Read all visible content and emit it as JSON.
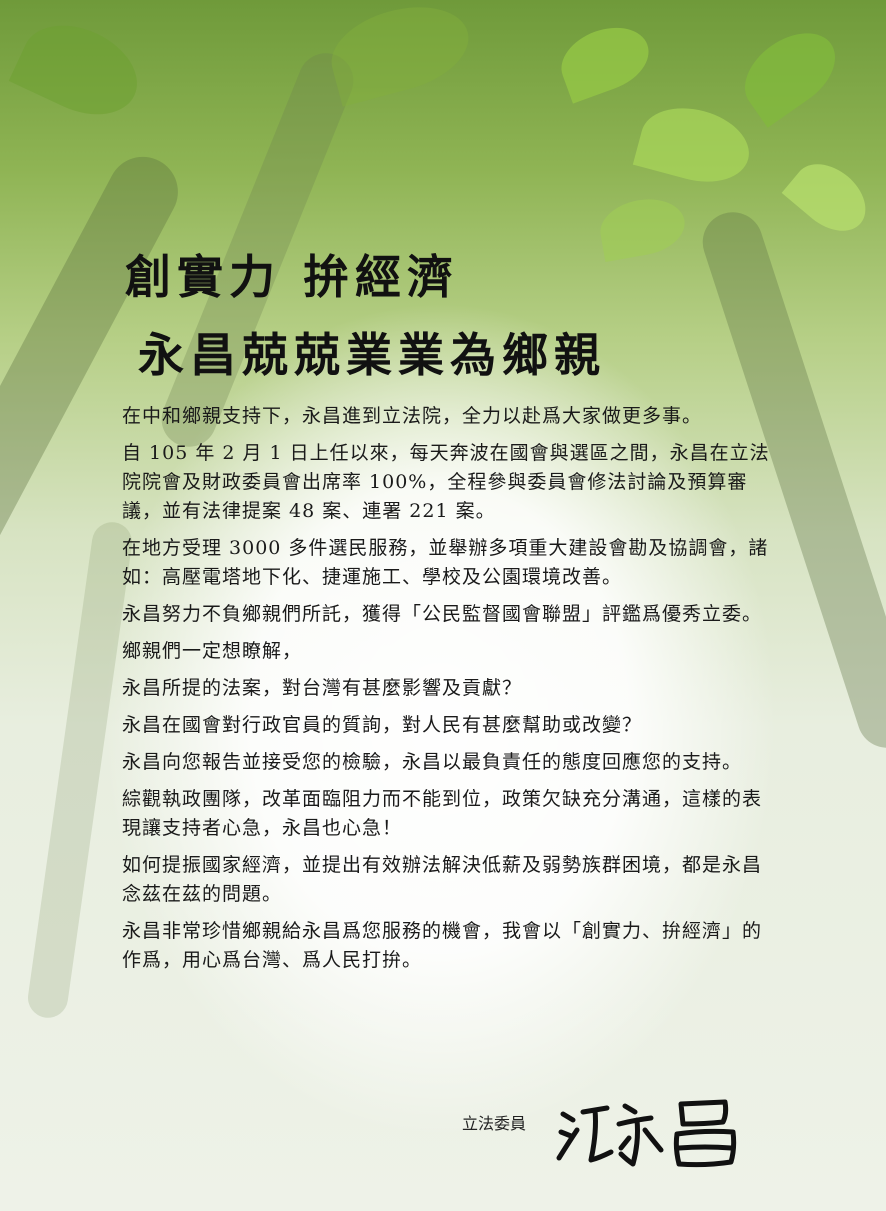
{
  "colors": {
    "text": "#1a1a1a",
    "title": "#111111",
    "foliage": "#8fb454"
  },
  "heading": {
    "line1": "創實力  拚經濟",
    "line2": "永昌兢兢業業為鄉親"
  },
  "paragraphs": [
    "在中和鄉親支持下，永昌進到立法院，全力以赴爲大家做更多事。",
    "自 105 年 2 月 1 日上任以來，每天奔波在國會與選區之間，永昌在立法院院會及財政委員會出席率 100%，全程參與委員會修法討論及預算審議，並有法律提案 48 案、連署 221 案。",
    "在地方受理 3000 多件選民服務，並舉辦多項重大建設會勘及協調會，諸如：高壓電塔地下化、捷運施工、學校及公園環境改善。",
    "永昌努力不負鄉親們所託，獲得「公民監督國會聯盟」評鑑爲優秀立委。",
    "鄉親們一定想瞭解，",
    "永昌所提的法案，對台灣有甚麼影響及貢獻？",
    "永昌在國會對行政官員的質詢，對人民有甚麼幫助或改變？",
    "永昌向您報告並接受您的檢驗，永昌以最負責任的態度回應您的支持。",
    "綜觀執政團隊，改革面臨阻力而不能到位，政策欠缺充分溝通，這樣的表現讓支持者心急，永昌也心急！",
    "如何提振國家經濟，並提出有效辦法解決低薪及弱勢族群困境，都是永昌念茲在茲的問題。",
    "永昌非常珍惜鄉親給永昌爲您服務的機會，我會以「創實力、拚經濟」的作爲，用心爲台灣、爲人民打拚。"
  ],
  "signature": {
    "label": "立法委員",
    "name": "江永昌"
  }
}
